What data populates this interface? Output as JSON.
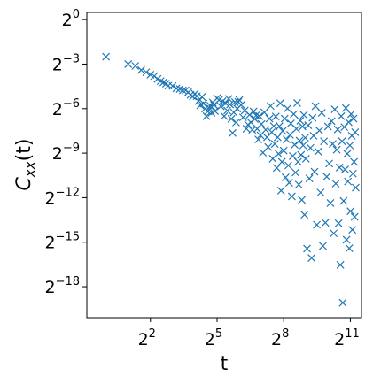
{
  "chart_data": {
    "type": "scatter",
    "marker": "x",
    "color": "#1f77b4",
    "xscale": "log2",
    "yscale": "log2",
    "xlabel": "t",
    "ylabel": {
      "base": "C",
      "sub": "xx",
      "suffix": "(t)"
    },
    "xlim": [
      0.55,
      2900
    ],
    "ylim": [
      9e-07,
      1.4
    ],
    "xticks": [
      {
        "value": 4,
        "base": "2",
        "exp": "2"
      },
      {
        "value": 32,
        "base": "2",
        "exp": "5"
      },
      {
        "value": 256,
        "base": "2",
        "exp": "8"
      },
      {
        "value": 2048,
        "base": "2",
        "exp": "11"
      }
    ],
    "yticks": [
      {
        "value": 1,
        "base": "2",
        "exp": "0"
      },
      {
        "value": 0.125,
        "base": "2",
        "exp": "−3"
      },
      {
        "value": 0.015625,
        "base": "2",
        "exp": "−6"
      },
      {
        "value": 0.001953125,
        "base": "2",
        "exp": "−9"
      },
      {
        "value": 0.000244140625,
        "base": "2",
        "exp": "−12"
      },
      {
        "value": 3.0517578125e-05,
        "base": "2",
        "exp": "−15"
      },
      {
        "value": 3.814697265625e-06,
        "base": "2",
        "exp": "−18"
      }
    ],
    "grid": false,
    "legend": "none",
    "points": [
      [
        1,
        0.1769
      ],
      [
        2,
        0.125
      ],
      [
        2.5,
        0.1149
      ],
      [
        3,
        0.0945
      ],
      [
        3.5,
        0.0856
      ],
      [
        4,
        0.0761
      ],
      [
        4.5,
        0.0714
      ],
      [
        5,
        0.0625
      ],
      [
        5.5,
        0.0566
      ],
      [
        6,
        0.0533
      ],
      [
        6.5,
        0.0502
      ],
      [
        7,
        0.0458
      ],
      [
        8,
        0.045
      ],
      [
        9,
        0.0402
      ],
      [
        10,
        0.0391
      ],
      [
        11,
        0.0367
      ],
      [
        12,
        0.0367
      ],
      [
        13,
        0.0335
      ],
      [
        14,
        0.0298
      ],
      [
        15,
        0.0276
      ],
      [
        16,
        0.0312
      ],
      [
        17,
        0.0279
      ],
      [
        18,
        0.0223
      ],
      [
        19,
        0.0183
      ],
      [
        20,
        0.0271
      ],
      [
        21,
        0.0198
      ],
      [
        22,
        0.0156
      ],
      [
        23,
        0.011
      ],
      [
        24,
        0.0137
      ],
      [
        25,
        0.0161
      ],
      [
        26,
        0.0179
      ],
      [
        27,
        0.0129
      ],
      [
        28,
        0.0208
      ],
      [
        29,
        0.0186
      ],
      [
        30,
        0.0139
      ],
      [
        32,
        0.0255
      ],
      [
        34,
        0.0233
      ],
      [
        36,
        0.0174
      ],
      [
        38,
        0.0221
      ],
      [
        40,
        0.011
      ],
      [
        42,
        0.0201
      ],
      [
        44,
        0.0143
      ],
      [
        46,
        0.0247
      ],
      [
        48,
        0.019
      ],
      [
        50,
        0.0097
      ],
      [
        52,
        0.005
      ],
      [
        54,
        0.0131
      ],
      [
        56,
        0.0212
      ],
      [
        58,
        0.0082
      ],
      [
        60,
        0.0156
      ],
      [
        62,
        0.0214
      ],
      [
        64,
        0.0233
      ],
      [
        68,
        0.0186
      ],
      [
        72,
        0.0104
      ],
      [
        76,
        0.0143
      ],
      [
        80,
        0.0061
      ],
      [
        84,
        0.0074
      ],
      [
        88,
        0.0117
      ],
      [
        92,
        0.0082
      ],
      [
        96,
        0.0058
      ],
      [
        100,
        0.0137
      ],
      [
        104,
        0.0096
      ],
      [
        108,
        0.0114
      ],
      [
        112,
        0.0061
      ],
      [
        116,
        0.0037
      ],
      [
        120,
        0.011
      ],
      [
        124,
        0.0045
      ],
      [
        128,
        0.0076
      ],
      [
        134,
        0.002
      ],
      [
        140,
        0.0131
      ],
      [
        146,
        0.0058
      ],
      [
        152,
        0.0041
      ],
      [
        158,
        0.0026
      ],
      [
        164,
        0.0098
      ],
      [
        170,
        0.0177
      ],
      [
        176,
        0.0052
      ],
      [
        182,
        0.0015
      ],
      [
        188,
        0.0069
      ],
      [
        194,
        0.003
      ],
      [
        200,
        0.0108
      ],
      [
        206,
        0.00098
      ],
      [
        212,
        0.0041
      ],
      [
        218,
        0.0019
      ],
      [
        224,
        0.0069
      ],
      [
        230,
        0.0201
      ],
      [
        236,
        0.00034
      ],
      [
        242,
        0.0013
      ],
      [
        248,
        0.0055
      ],
      [
        256,
        0.0022
      ],
      [
        264,
        0.0098
      ],
      [
        272,
        0.00063
      ],
      [
        280,
        0.0037
      ],
      [
        288,
        0.0157
      ],
      [
        296,
        0.0011
      ],
      [
        304,
        0.00049
      ],
      [
        312,
        0.0046
      ],
      [
        320,
        0.0078
      ],
      [
        330,
        0.00026
      ],
      [
        340,
        0.0017
      ],
      [
        350,
        0.0121
      ],
      [
        360,
        0.0029
      ],
      [
        370,
        0.00079
      ],
      [
        380,
        0.0061
      ],
      [
        390,
        0.0203
      ],
      [
        400,
        0.0013
      ],
      [
        410,
        0.00045
      ],
      [
        420,
        0.0035
      ],
      [
        430,
        0.0089
      ],
      [
        440,
        0.0018
      ],
      [
        450,
        0.00022
      ],
      [
        460,
        0.0068
      ],
      [
        470,
        0.0028
      ],
      [
        480,
        0.0116
      ],
      [
        490,
        0.00011
      ],
      [
        500,
        0.004
      ],
      [
        512,
        0.0015
      ],
      [
        530,
        2.27e-05
      ],
      [
        550,
        0.0072
      ],
      [
        570,
        0.0006
      ],
      [
        590,
        0.0025
      ],
      [
        610,
        1.46e-05
      ],
      [
        630,
        0.0102
      ],
      [
        650,
        0.0044
      ],
      [
        670,
        0.00082
      ],
      [
        690,
        0.0175
      ],
      [
        720,
        6.9e-05
      ],
      [
        750,
        0.0021
      ],
      [
        780,
        0.0056
      ],
      [
        810,
        0.00031
      ],
      [
        840,
        0.0128
      ],
      [
        870,
        2.56e-05
      ],
      [
        900,
        0.0034
      ],
      [
        940,
        7.58e-05
      ],
      [
        980,
        0.00065
      ],
      [
        1020,
        0.0068
      ],
      [
        1060,
        0.0012
      ],
      [
        1100,
        0.00019
      ],
      [
        1140,
        0.0087
      ],
      [
        1180,
        0.003
      ],
      [
        1220,
        4.61e-05
      ],
      [
        1260,
        0.0151
      ],
      [
        1300,
        0.00047
      ],
      [
        1340,
        0.0023
      ],
      [
        1380,
        0.0059
      ],
      [
        1420,
        7.4e-05
      ],
      [
        1460,
        0.001
      ],
      [
        1500,
        1.06e-05
      ],
      [
        1540,
        0.011
      ],
      [
        1580,
        0.0034
      ],
      [
        1620,
        1.8e-06
      ],
      [
        1660,
        0.00021
      ],
      [
        1700,
        0.0066
      ],
      [
        1740,
        0.00091
      ],
      [
        1780,
        0.016
      ],
      [
        1820,
        3.42e-05
      ],
      [
        1860,
        0.0019
      ],
      [
        1900,
        0.00052
      ],
      [
        1940,
        0.0083
      ],
      [
        1980,
        2.3e-05
      ],
      [
        2020,
        0.0028
      ],
      [
        2060,
        0.00013
      ],
      [
        2100,
        0.0121
      ],
      [
        2140,
        0.0044
      ],
      [
        2180,
        5.45e-05
      ],
      [
        2220,
        0.00075
      ],
      [
        2260,
        0.0098
      ],
      [
        2300,
        0.0013
      ],
      [
        2340,
        0.0001
      ],
      [
        2380,
        0.0052
      ],
      [
        2420,
        0.00039
      ]
    ]
  }
}
